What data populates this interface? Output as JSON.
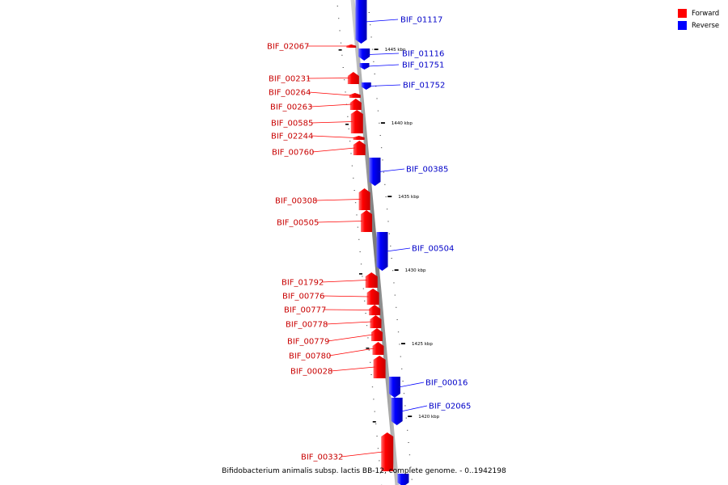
{
  "caption": "Bifidobacterium animalis subsp. lactis BB-12, complete genome. - 0..1942198",
  "legend": [
    {
      "label": "Forward",
      "color": "#ff0000"
    },
    {
      "label": "Reverse",
      "color": "#0000ff"
    }
  ],
  "colors": {
    "forward": "#ff0000",
    "reverse": "#0000ff",
    "axis": "#999999"
  },
  "ticks": [
    "1445 kbp",
    "1440 kbp",
    "1435 kbp",
    "1430 kbp",
    "1425 kbp",
    "1420 kbp"
  ],
  "forward_genes": [
    "BIF_02067",
    "BIF_00231",
    "BIF_00264",
    "BIF_00263",
    "BIF_00585",
    "BIF_02244",
    "BIF_00760",
    "BIF_00308",
    "BIF_00505",
    "BIF_01792",
    "BIF_00776",
    "BIF_00777",
    "BIF_00778",
    "BIF_00779",
    "BIF_00780",
    "BIF_00028",
    "BIF_00332"
  ],
  "reverse_genes": [
    "BIF_01117",
    "BIF_01116",
    "BIF_01751",
    "BIF_01752",
    "BIF_00385",
    "BIF_00504",
    "BIF_00016",
    "BIF_02065"
  ]
}
